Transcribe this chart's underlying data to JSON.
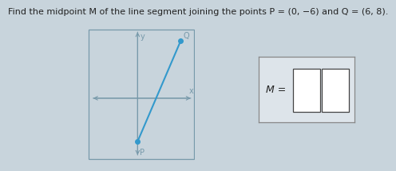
{
  "title_plain": "Find the midpoint M of the line segment joining the points P = (0, −6) and Q = (6, 8).",
  "P": [
    0,
    -6
  ],
  "Q": [
    6,
    8
  ],
  "xlim": [
    -7,
    8
  ],
  "ylim": [
    -9,
    10
  ],
  "line_color": "#3399cc",
  "point_color": "#3399cc",
  "bg_color": "#c8d4dc",
  "axes_color": "#7799aa",
  "box_color": "#7799aa",
  "answer_box_bg": "#dde4ea",
  "answer_box_border": "#888888",
  "title_fontsize": 8.0,
  "label_fontsize": 7.0
}
